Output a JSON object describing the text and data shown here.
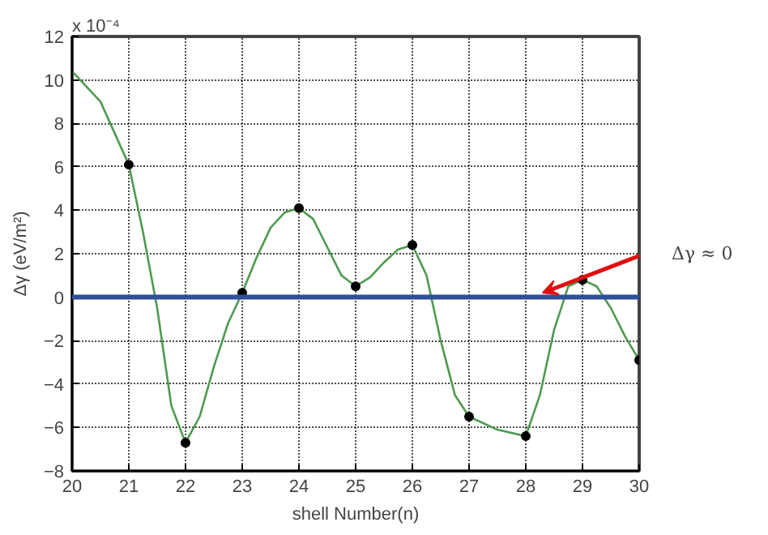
{
  "chart_data": {
    "type": "line",
    "xlabel": "shell Number(n)",
    "ylabel": "Δγ (eV/m²)",
    "xlim": [
      20,
      30
    ],
    "ylim": [
      -8,
      12
    ],
    "xticks": [
      20,
      21,
      22,
      23,
      24,
      25,
      26,
      27,
      28,
      29,
      30
    ],
    "yticks": [
      -8,
      -6,
      -4,
      -2,
      0,
      2,
      4,
      6,
      8,
      10,
      12
    ],
    "grid": true,
    "series": [
      {
        "color": "#4f9a4f",
        "marker": "none",
        "x": [
          20,
          20.5,
          21,
          21.25,
          21.5,
          21.75,
          22,
          22.25,
          22.5,
          22.75,
          23,
          23.25,
          23.5,
          23.75,
          24,
          24.25,
          24.5,
          24.75,
          25,
          25.25,
          25.5,
          25.75,
          26,
          26.25,
          26.5,
          26.75,
          27,
          27.5,
          28,
          28.25,
          28.5,
          28.75,
          29,
          29.25,
          29.5,
          29.75,
          30
        ],
        "values": [
          10.4,
          9.0,
          6.1,
          3.0,
          -0.5,
          -5.0,
          -6.7,
          -5.5,
          -3.2,
          -1.2,
          0.2,
          1.8,
          3.2,
          3.9,
          4.1,
          3.6,
          2.3,
          1.0,
          0.5,
          0.9,
          1.6,
          2.2,
          2.4,
          1.0,
          -2.0,
          -4.5,
          -5.5,
          -6.1,
          -6.4,
          -4.5,
          -1.5,
          0.5,
          0.8,
          0.5,
          -0.5,
          -1.8,
          -2.9
        ]
      },
      {
        "type": "scatter",
        "color": "#000000",
        "marker": "circle",
        "x": [
          21,
          22,
          23,
          24,
          25,
          26,
          27,
          28,
          29,
          30
        ],
        "values": [
          6.1,
          -6.7,
          0.2,
          4.1,
          0.5,
          2.4,
          -5.5,
          -6.4,
          0.8,
          -2.9
        ]
      }
    ],
    "ref_lines": [
      {
        "axis": "y",
        "value": 0,
        "color": "#2f4f9a",
        "label": "Δγ ≈ 0"
      }
    ],
    "annotations": [
      "x 10⁻⁴"
    ]
  }
}
